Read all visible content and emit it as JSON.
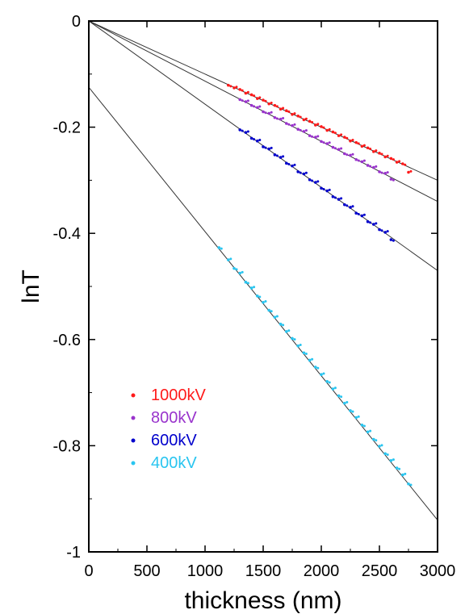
{
  "chart_data": {
    "type": "scatter",
    "xlabel": "thickness (nm)",
    "ylabel": "lnT",
    "xlim": [
      0,
      3000
    ],
    "ylim": [
      -1,
      0
    ],
    "x_ticks": [
      0,
      500,
      1000,
      1500,
      2000,
      2500,
      3000
    ],
    "y_ticks": [
      0,
      -0.2,
      -0.4,
      -0.6,
      -0.8,
      -1
    ],
    "x_tick_labels": [
      "0",
      "500",
      "1000",
      "1500",
      "2000",
      "2500",
      "3000"
    ],
    "y_tick_labels": [
      "0",
      "-0.2",
      "-0.4",
      "-0.6",
      "-0.8",
      "-1"
    ],
    "legend_position": "lower-left",
    "series": [
      {
        "name": "1000kV",
        "color": "#ff1a1a",
        "fit": {
          "slope": -0.0001,
          "intercept": 0
        },
        "x_range": [
          1200,
          2750
        ],
        "points": [
          [
            1200,
            -0.121
          ],
          [
            1250,
            -0.126
          ],
          [
            1300,
            -0.129
          ],
          [
            1350,
            -0.136
          ],
          [
            1400,
            -0.139
          ],
          [
            1450,
            -0.146
          ],
          [
            1500,
            -0.149
          ],
          [
            1550,
            -0.156
          ],
          [
            1600,
            -0.159
          ],
          [
            1650,
            -0.166
          ],
          [
            1700,
            -0.169
          ],
          [
            1750,
            -0.176
          ],
          [
            1800,
            -0.179
          ],
          [
            1850,
            -0.186
          ],
          [
            1900,
            -0.189
          ],
          [
            1950,
            -0.196
          ],
          [
            2000,
            -0.199
          ],
          [
            2050,
            -0.206
          ],
          [
            2100,
            -0.209
          ],
          [
            2150,
            -0.216
          ],
          [
            2200,
            -0.219
          ],
          [
            2250,
            -0.226
          ],
          [
            2300,
            -0.229
          ],
          [
            2350,
            -0.236
          ],
          [
            2400,
            -0.239
          ],
          [
            2450,
            -0.246
          ],
          [
            2500,
            -0.249
          ],
          [
            2550,
            -0.256
          ],
          [
            2600,
            -0.259
          ],
          [
            2650,
            -0.266
          ],
          [
            2700,
            -0.269
          ],
          [
            2750,
            -0.285
          ]
        ]
      },
      {
        "name": "800kV",
        "color": "#9933cc",
        "fit": {
          "slope": -0.0001133,
          "intercept": 0
        },
        "x_range": [
          1300,
          2600
        ],
        "points": [
          [
            1300,
            -0.148
          ],
          [
            1350,
            -0.152
          ],
          [
            1400,
            -0.159
          ],
          [
            1450,
            -0.163
          ],
          [
            1500,
            -0.171
          ],
          [
            1550,
            -0.174
          ],
          [
            1600,
            -0.182
          ],
          [
            1650,
            -0.185
          ],
          [
            1700,
            -0.193
          ],
          [
            1750,
            -0.197
          ],
          [
            1800,
            -0.204
          ],
          [
            1850,
            -0.208
          ],
          [
            1900,
            -0.216
          ],
          [
            1950,
            -0.219
          ],
          [
            2000,
            -0.227
          ],
          [
            2050,
            -0.231
          ],
          [
            2100,
            -0.238
          ],
          [
            2150,
            -0.242
          ],
          [
            2200,
            -0.25
          ],
          [
            2250,
            -0.253
          ],
          [
            2300,
            -0.261
          ],
          [
            2350,
            -0.265
          ],
          [
            2400,
            -0.272
          ],
          [
            2450,
            -0.276
          ],
          [
            2500,
            -0.284
          ],
          [
            2550,
            -0.287
          ],
          [
            2600,
            -0.298
          ]
        ]
      },
      {
        "name": "600kV",
        "color": "#0000cc",
        "fit": {
          "slope": -0.0001567,
          "intercept": 0
        },
        "x_range": [
          1300,
          2600
        ],
        "points": [
          [
            1300,
            -0.205
          ],
          [
            1350,
            -0.21
          ],
          [
            1400,
            -0.221
          ],
          [
            1450,
            -0.226
          ],
          [
            1500,
            -0.237
          ],
          [
            1550,
            -0.241
          ],
          [
            1600,
            -0.252
          ],
          [
            1650,
            -0.257
          ],
          [
            1700,
            -0.268
          ],
          [
            1750,
            -0.273
          ],
          [
            1800,
            -0.284
          ],
          [
            1850,
            -0.288
          ],
          [
            1900,
            -0.299
          ],
          [
            1950,
            -0.304
          ],
          [
            2000,
            -0.315
          ],
          [
            2050,
            -0.32
          ],
          [
            2100,
            -0.331
          ],
          [
            2150,
            -0.336
          ],
          [
            2200,
            -0.346
          ],
          [
            2250,
            -0.351
          ],
          [
            2300,
            -0.362
          ],
          [
            2350,
            -0.367
          ],
          [
            2400,
            -0.378
          ],
          [
            2450,
            -0.383
          ],
          [
            2500,
            -0.393
          ],
          [
            2550,
            -0.398
          ],
          [
            2600,
            -0.412
          ]
        ]
      },
      {
        "name": "400kV",
        "color": "#29c5f0",
        "fit": {
          "slope": -0.0002717,
          "intercept": -0.125
        },
        "x_range": [
          1120,
          2750
        ],
        "points": [
          [
            1120,
            -0.427
          ],
          [
            1200,
            -0.45
          ],
          [
            1250,
            -0.466
          ],
          [
            1300,
            -0.475
          ],
          [
            1350,
            -0.492
          ],
          [
            1400,
            -0.503
          ],
          [
            1450,
            -0.518
          ],
          [
            1500,
            -0.53
          ],
          [
            1550,
            -0.545
          ],
          [
            1600,
            -0.558
          ],
          [
            1650,
            -0.571
          ],
          [
            1700,
            -0.585
          ],
          [
            1750,
            -0.598
          ],
          [
            1800,
            -0.612
          ],
          [
            1850,
            -0.625
          ],
          [
            1900,
            -0.639
          ],
          [
            1950,
            -0.652
          ],
          [
            2000,
            -0.666
          ],
          [
            2050,
            -0.679
          ],
          [
            2100,
            -0.693
          ],
          [
            2150,
            -0.706
          ],
          [
            2200,
            -0.72
          ],
          [
            2250,
            -0.734
          ],
          [
            2300,
            -0.747
          ],
          [
            2350,
            -0.761
          ],
          [
            2400,
            -0.774
          ],
          [
            2450,
            -0.788
          ],
          [
            2500,
            -0.801
          ],
          [
            2550,
            -0.815
          ],
          [
            2600,
            -0.828
          ],
          [
            2650,
            -0.842
          ],
          [
            2700,
            -0.855
          ],
          [
            2750,
            -0.872
          ]
        ]
      }
    ]
  }
}
